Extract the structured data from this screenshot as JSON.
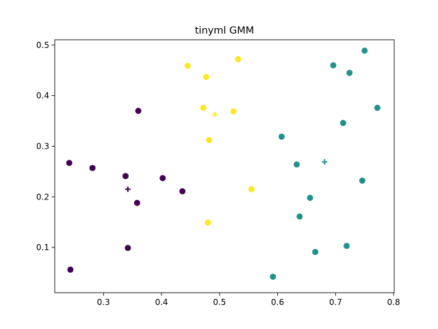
{
  "chart_data": {
    "type": "scatter",
    "title": "tinyml GMM",
    "xlabel": "",
    "ylabel": "",
    "xlim": [
      0.216,
      0.801
    ],
    "ylim": [
      0.0105,
      0.5105
    ],
    "xticks": [
      0.3,
      0.4,
      0.5,
      0.6,
      0.7,
      0.8
    ],
    "xtick_labels": [
      "0.3",
      "0.4",
      "0.5",
      "0.6",
      "0.7",
      "0.8"
    ],
    "yticks": [
      0.1,
      0.2,
      0.3,
      0.4,
      0.5
    ],
    "ytick_labels": [
      "0.1",
      "0.2",
      "0.3",
      "0.4",
      "0.5"
    ],
    "grid": false,
    "legend": "none",
    "series": [
      {
        "color": "#440154",
        "points": [
          [
            0.241,
            0.267
          ],
          [
            0.281,
            0.257
          ],
          [
            0.338,
            0.241
          ],
          [
            0.36,
            0.37
          ],
          [
            0.402,
            0.237
          ],
          [
            0.436,
            0.211
          ],
          [
            0.358,
            0.188
          ],
          [
            0.342,
            0.099
          ],
          [
            0.243,
            0.056
          ]
        ],
        "centroid": [
          0.342,
          0.215
        ]
      },
      {
        "color": "#21918c",
        "points": [
          [
            0.75,
            0.489
          ],
          [
            0.696,
            0.46
          ],
          [
            0.724,
            0.445
          ],
          [
            0.772,
            0.376
          ],
          [
            0.713,
            0.346
          ],
          [
            0.607,
            0.319
          ],
          [
            0.633,
            0.264
          ],
          [
            0.746,
            0.232
          ],
          [
            0.656,
            0.198
          ],
          [
            0.638,
            0.161
          ],
          [
            0.719,
            0.103
          ],
          [
            0.665,
            0.091
          ],
          [
            0.592,
            0.042
          ]
        ],
        "centroid": [
          0.681,
          0.269
        ]
      },
      {
        "color": "#fde725",
        "points": [
          [
            0.445,
            0.459
          ],
          [
            0.532,
            0.472
          ],
          [
            0.477,
            0.437
          ],
          [
            0.472,
            0.376
          ],
          [
            0.524,
            0.369
          ],
          [
            0.482,
            0.312
          ],
          [
            0.555,
            0.215
          ],
          [
            0.48,
            0.149
          ]
        ],
        "centroid": [
          0.492,
          0.363
        ]
      }
    ]
  }
}
